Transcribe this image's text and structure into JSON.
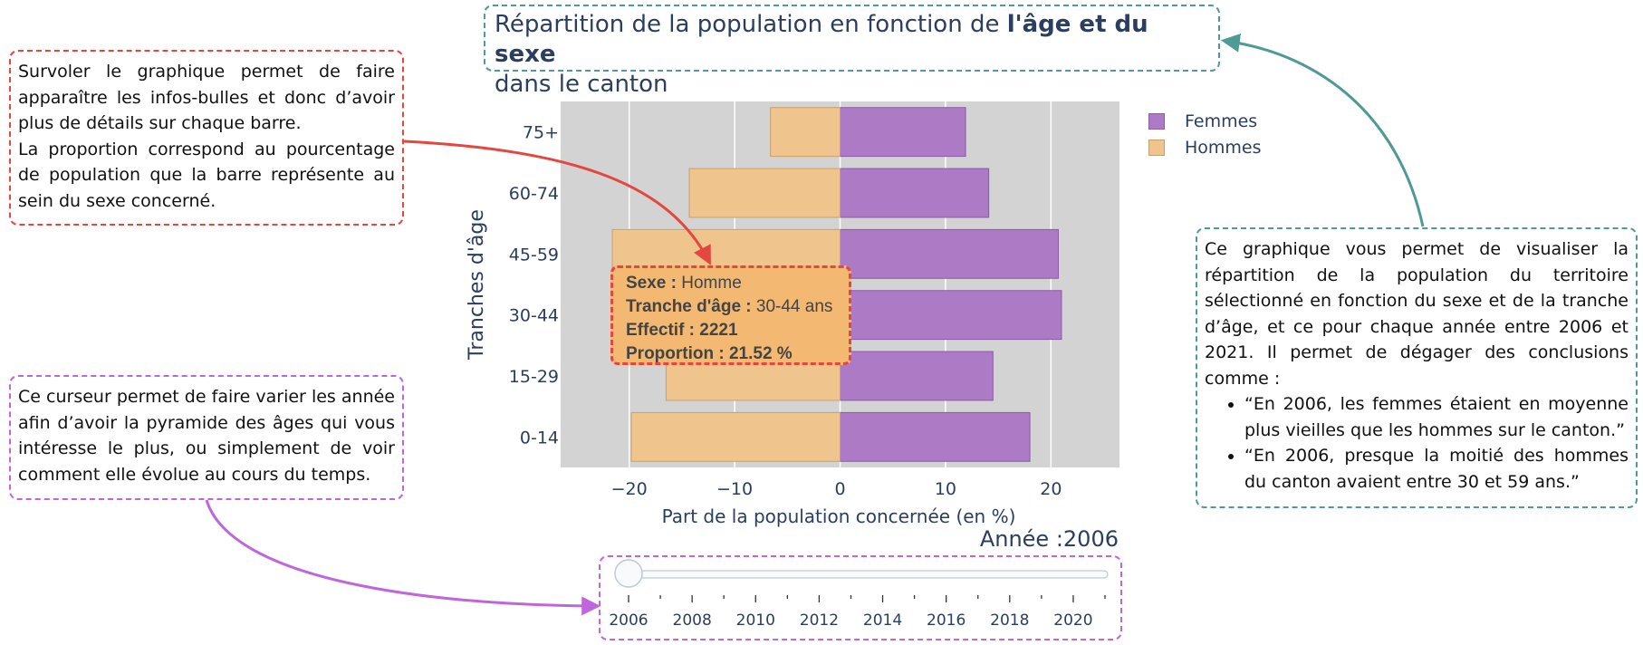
{
  "title": {
    "part1": "Répartition de la population en fonction de ",
    "bold": "l'âge et du sexe",
    "part2": "dans le canton"
  },
  "notes": {
    "hover_p1": "Survoler le graphique permet de faire apparaître les infos-bulles et donc d’avoir plus de détails sur chaque barre.",
    "hover_p2": "La proportion correspond au pourcentage de population que la barre représente au sein du sexe concerné.",
    "slider": "Ce curseur permet de faire varier les année afin d’avoir la pyramide des âges qui vous intéresse le plus, ou simplement de voir comment elle évolue au cours du temps.",
    "chart_intro": "Ce graphique vous permet de visualiser la répartition de la population du territoire sélectionné en fonction du sexe et de la tranche d’âge, et ce pour chaque année entre 2006 et 2021. Il permet de dégager des conclusions comme :",
    "bullet1": "“En 2006, les femmes étaient en moyenne plus vieilles que les hommes sur le canton.”",
    "bullet2": "“En 2006, presque la moitié des hommes du canton avaient entre 30 et 59 ans.”"
  },
  "tooltip": {
    "sexe_label": "Sexe :",
    "sexe_value": "Homme",
    "tranche_label": "Tranche d'âge :",
    "tranche_value": "30-44 ans",
    "effectif_label": "Effectif :",
    "effectif_value": "2221",
    "proportion_label": "Proportion :",
    "proportion_value": "21.52 %"
  },
  "slider": {
    "current_label": "Année :2006",
    "selected": 2006,
    "tick_labels": [
      "2006",
      "2008",
      "2010",
      "2012",
      "2014",
      "2016",
      "2018",
      "2020"
    ],
    "min": 2006,
    "max": 2021
  },
  "colors": {
    "femmes": "#ad7bc6",
    "hommes": "#f0c48d",
    "plot_bg": "#d3d3d3",
    "red_annotation": "#e4473f",
    "teal_annotation": "#4e9a94",
    "purple_annotation": "#c066dd"
  },
  "chart_data": {
    "type": "bar",
    "orientation": "horizontal",
    "categories": [
      "0-14",
      "15-29",
      "30-44",
      "45-59",
      "60-74",
      "75+"
    ],
    "series": [
      {
        "name": "Femmes",
        "values": [
          18,
          14.5,
          21,
          20.7,
          14.1,
          11.9
        ]
      },
      {
        "name": "Hommes",
        "values": [
          -19.8,
          -16.5,
          -21.52,
          -21.6,
          -14.3,
          -6.6
        ]
      }
    ],
    "xlabel": "Part de la population concernée (en %)",
    "ylabel": "Tranches d'âge",
    "xlim": [
      -26.5,
      26.5
    ],
    "xticks": [
      -20,
      -10,
      0,
      10,
      20
    ],
    "xtick_labels": [
      "−20",
      "−10",
      "0",
      "10",
      "20"
    ],
    "grid": true,
    "legend": "top-right"
  }
}
